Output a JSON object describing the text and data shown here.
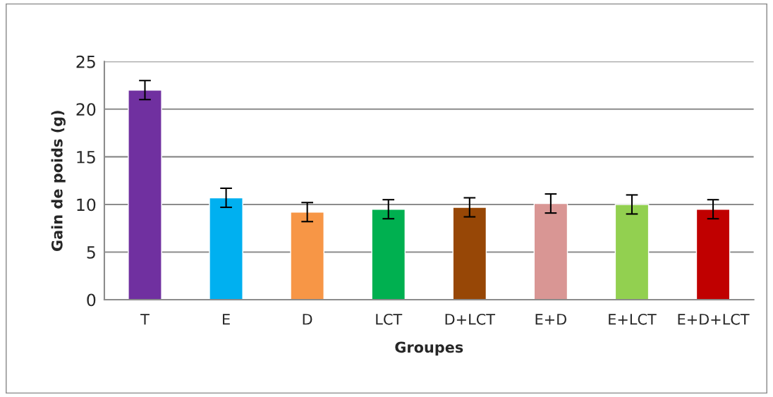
{
  "chart_data": {
    "type": "bar",
    "xlabel": "Groupes",
    "ylabel": "Gain de poids (g)",
    "categories": [
      "T",
      "E",
      "D",
      "LCT",
      "D+LCT",
      "E+D",
      "E+LCT",
      "E+D+LCT"
    ],
    "values": [
      22.0,
      10.7,
      9.2,
      9.5,
      9.7,
      10.1,
      10.0,
      9.5
    ],
    "errors": [
      1.0,
      1.0,
      1.0,
      1.0,
      1.0,
      1.0,
      1.0,
      1.0
    ],
    "colors": [
      "#7030a0",
      "#00b0f0",
      "#f79646",
      "#00b050",
      "#974706",
      "#d99694",
      "#92d050",
      "#c00000"
    ],
    "ylim": [
      0,
      25
    ],
    "yticks": [
      0,
      5,
      10,
      15,
      20,
      25
    ],
    "grid": "y"
  }
}
